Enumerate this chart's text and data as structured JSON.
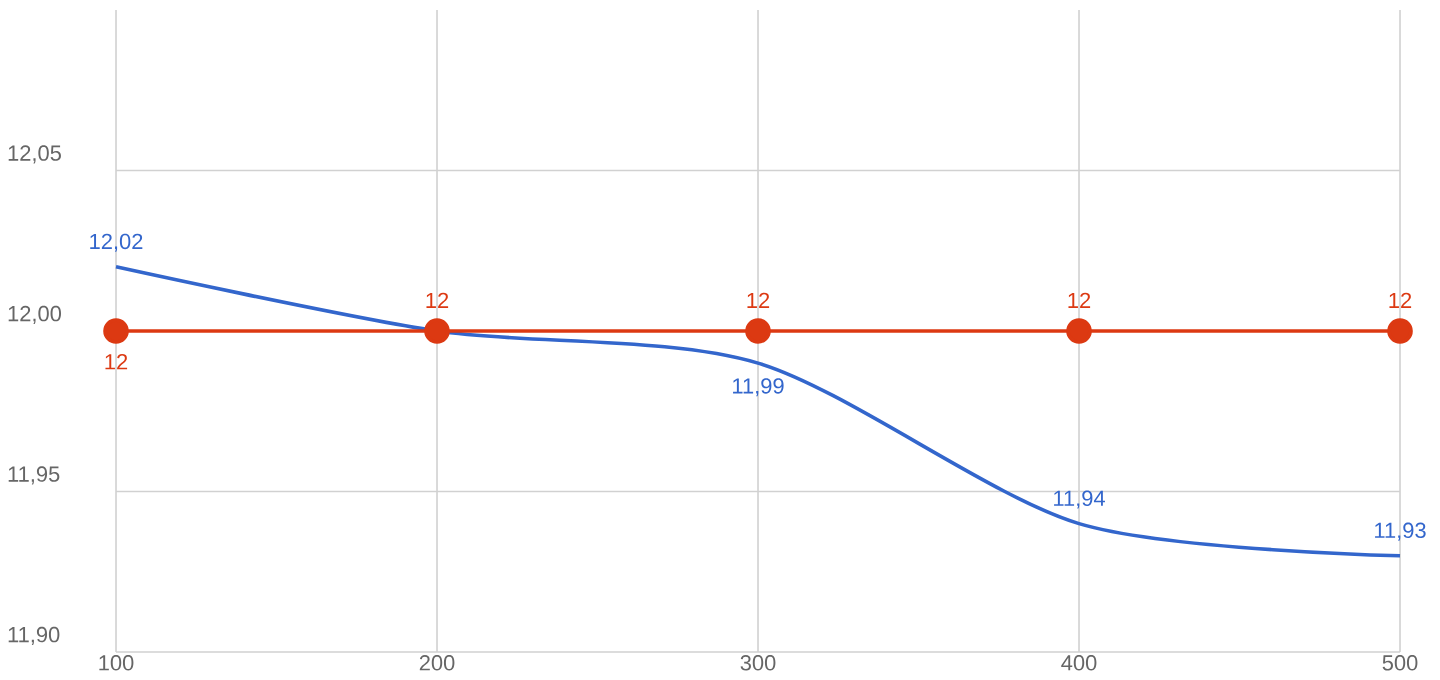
{
  "chart_data": {
    "type": "line",
    "x": [
      100,
      200,
      300,
      400,
      500
    ],
    "xlim": [
      100,
      500
    ],
    "xticks": [
      100,
      200,
      300,
      400,
      500
    ],
    "ylim": [
      11.9,
      12.1
    ],
    "yticks": [
      {
        "value": 11.9,
        "label": "11,90"
      },
      {
        "value": 11.95,
        "label": "11,95"
      },
      {
        "value": 12.0,
        "label": "12,00"
      },
      {
        "value": 12.05,
        "label": "12,05"
      }
    ],
    "grid": true,
    "series": [
      {
        "color": "#3366cc",
        "marker": "none",
        "values": [
          12.02,
          12.0,
          11.99,
          11.94,
          11.93
        ],
        "value_labels": [
          "12,02",
          null,
          "11,99",
          "11,94",
          "11,93"
        ]
      },
      {
        "color": "#dc3912",
        "marker": "circle",
        "values": [
          12,
          12,
          12,
          12,
          12
        ],
        "value_labels": [
          "12",
          "12",
          "12",
          "12",
          "12"
        ]
      }
    ]
  }
}
